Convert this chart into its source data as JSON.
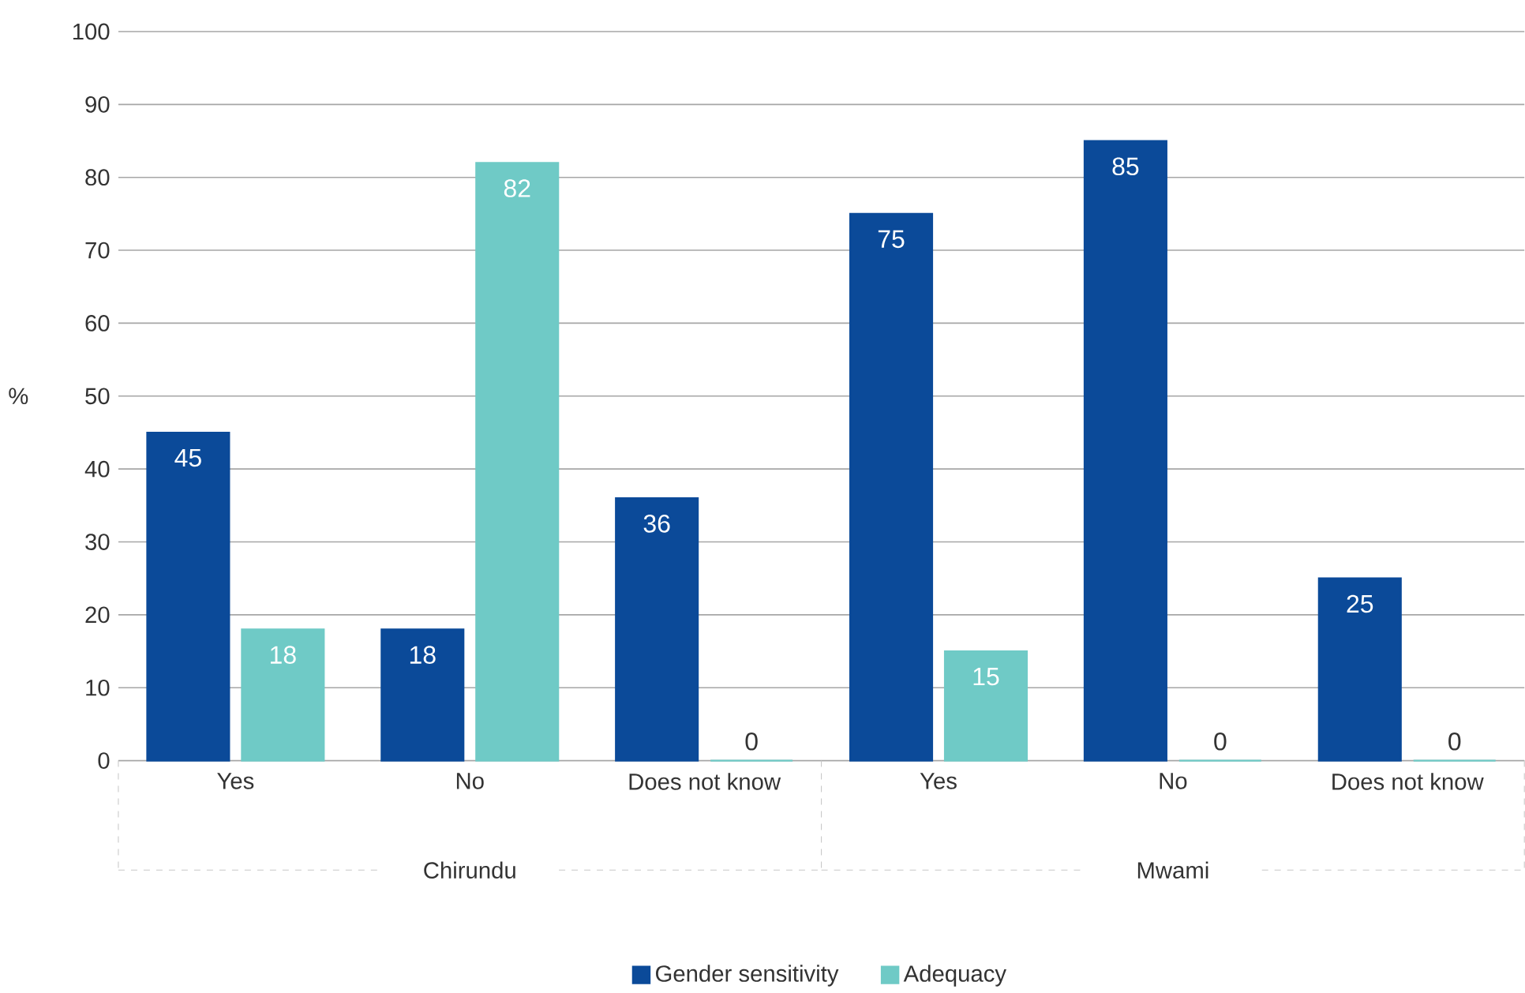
{
  "chart_data": {
    "type": "bar",
    "ylabel": "%",
    "categories": [
      "Yes",
      "No",
      "Does not know",
      "Yes",
      "No",
      "Does not know"
    ],
    "series": [
      {
        "name": "Gender sensitivity",
        "color": "#0b4a99",
        "values": [
          45,
          18,
          36,
          75,
          85,
          25
        ]
      },
      {
        "name": "Adequacy",
        "color": "#6fcac6",
        "values": [
          18,
          82,
          0,
          15,
          0,
          0
        ]
      }
    ],
    "ylim": [
      0,
      100
    ],
    "yticks": [
      0,
      10,
      20,
      30,
      40,
      50,
      60,
      70,
      80,
      90,
      100
    ],
    "grid": "y",
    "legend": "bottom",
    "data_labels": true,
    "annotations": [
      "Chirundu",
      "Mwami"
    ]
  }
}
